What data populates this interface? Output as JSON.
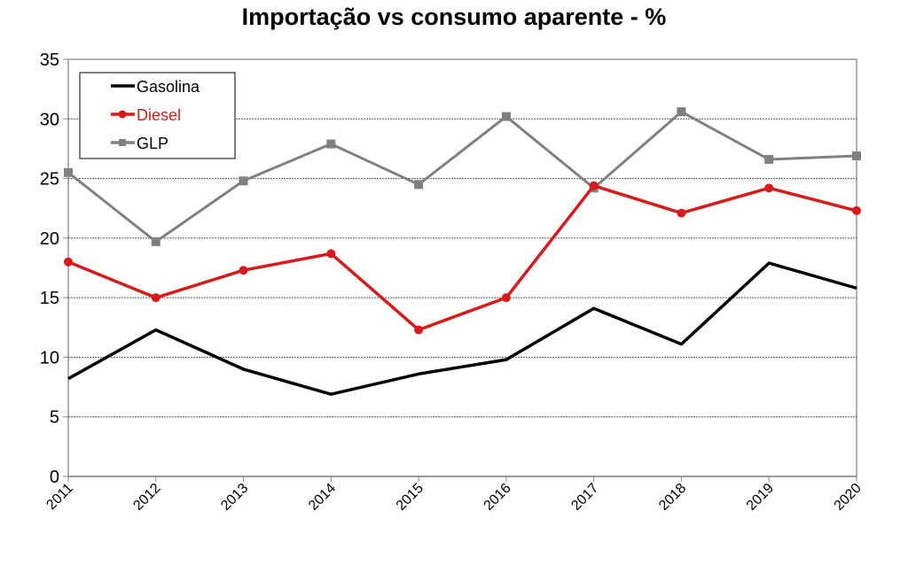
{
  "chart_data": {
    "type": "line",
    "title": "Importação vs consumo aparente - %",
    "xlabel": "",
    "ylabel": "",
    "categories": [
      "2011",
      "2012",
      "2013",
      "2014",
      "2015",
      "2016",
      "2017",
      "2018",
      "2019",
      "2020"
    ],
    "ylim": [
      0,
      35
    ],
    "yticks": [
      0,
      5,
      10,
      15,
      20,
      25,
      30,
      35
    ],
    "grid": true,
    "legend_position": "top-left",
    "series": [
      {
        "name": "Gasolina",
        "color": "#000000",
        "marker": "none",
        "values": [
          8.2,
          12.3,
          9.0,
          6.9,
          8.6,
          9.8,
          14.1,
          11.1,
          17.9,
          15.8
        ]
      },
      {
        "name": "Diesel",
        "color": "#d91a1a",
        "marker": "circle",
        "values": [
          18.0,
          15.0,
          17.3,
          18.7,
          12.3,
          15.0,
          24.4,
          22.1,
          24.2,
          22.3
        ]
      },
      {
        "name": "GLP",
        "color": "#808080",
        "marker": "square",
        "values": [
          25.5,
          19.7,
          24.8,
          27.9,
          24.5,
          30.2,
          24.2,
          30.6,
          26.6,
          26.9
        ]
      }
    ]
  }
}
